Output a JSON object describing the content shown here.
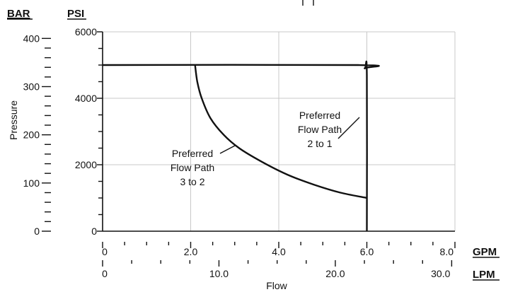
{
  "chart_data": {
    "type": "line",
    "xlabel": "Flow",
    "ylabel": "Pressure",
    "left_axis_unit": "BAR",
    "right_axis_unit": "PSI",
    "psi_axis": {
      "ylim": [
        0,
        6000
      ],
      "ticks": [
        "0",
        "2000",
        "4000",
        "6000"
      ],
      "tick_values": [
        0,
        2000,
        4000,
        6000
      ]
    },
    "bar_axis": {
      "ylim": [
        0,
        413.7
      ],
      "ticks": [
        "0",
        "100",
        "200",
        "300",
        "400"
      ],
      "tick_values": [
        0,
        100,
        200,
        300,
        400
      ]
    },
    "gpm_axis": {
      "unit": "GPM",
      "xlim": [
        0,
        8
      ],
      "ticks": [
        "0",
        "2.0",
        "4.0",
        "6.0",
        "8.0"
      ],
      "tick_values": [
        0,
        2,
        4,
        6,
        8
      ]
    },
    "lpm_axis": {
      "unit": "LPM",
      "xlim": [
        0,
        30.28
      ],
      "ticks": [
        "0",
        "10.0",
        "20.0",
        "30.0"
      ],
      "tick_values": [
        0,
        10,
        20,
        30
      ]
    },
    "grid": true,
    "series": [
      {
        "x_units": "GPM",
        "y_units": "PSI",
        "x": [
          0,
          5.8,
          5.95,
          6.0,
          6.0
        ],
        "y": [
          5000,
          5000,
          4900,
          4700,
          0
        ]
      },
      {
        "x_units": "GPM",
        "y_units": "PSI",
        "x": [
          2.1,
          2.15,
          2.25,
          2.45,
          2.75,
          3.1,
          3.6,
          4.2,
          4.8,
          5.4,
          6.0
        ],
        "y": [
          5000,
          4500,
          4000,
          3400,
          2900,
          2500,
          2100,
          1700,
          1400,
          1160,
          1000
        ]
      }
    ],
    "annotations": [
      {
        "lines": [
          "Preferred",
          "Flow Path",
          "2 to 1"
        ]
      },
      {
        "lines": [
          "Preferred",
          "Flow Path",
          "3 to 2"
        ]
      }
    ]
  }
}
